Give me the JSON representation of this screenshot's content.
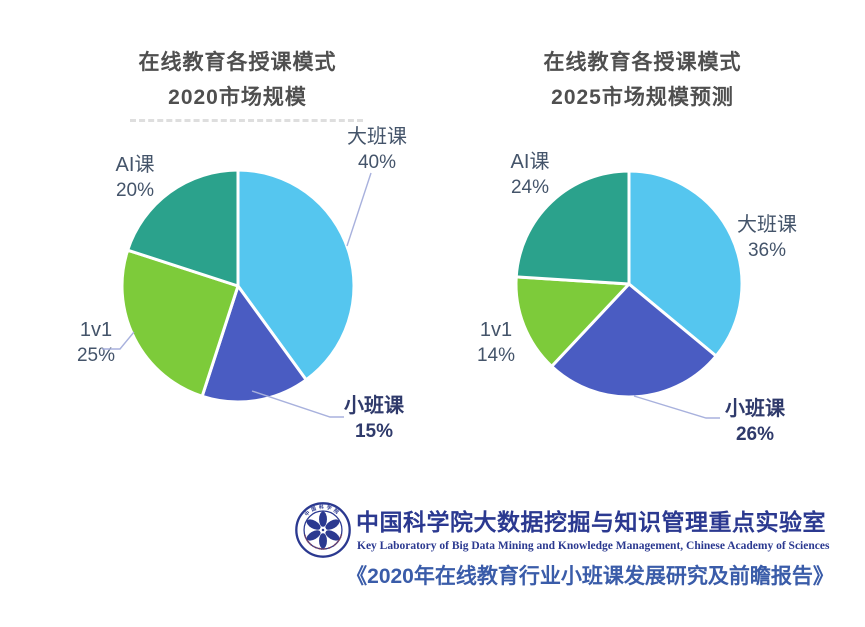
{
  "palette": {
    "skyblue": "#55C6EF",
    "indigo": "#4A5CC2",
    "lime": "#7DCB3A",
    "teal": "#2BA28C"
  },
  "style_colors": {
    "title_gray": "#4f4f4f",
    "label_blue_gray": "#44546A",
    "label_bold_navy": "#2F3A6B",
    "leader_line": "#A8B1DD",
    "logo_blue": "#2B3990",
    "report_title_blue": "#3A5CA9"
  },
  "chart_data": [
    {
      "type": "pie",
      "title_lines": [
        "在线教育各授课模式",
        "2020市场规模"
      ],
      "title": "在线教育各授课模式 2020市场规模",
      "unit": "%",
      "start_angle": "12-o-clock",
      "direction": "clockwise",
      "legend": "none",
      "labels_position": "outside",
      "slices": [
        {
          "label": "大班课",
          "value": 40,
          "pct": "40%",
          "color_key": "skyblue"
        },
        {
          "label": "小班课",
          "value": 15,
          "pct": "15%",
          "color_key": "indigo"
        },
        {
          "label": "1v1",
          "value": 25,
          "pct": "25%",
          "color_key": "lime"
        },
        {
          "label": "AI课",
          "value": 20,
          "pct": "20%",
          "color_key": "teal"
        }
      ]
    },
    {
      "type": "pie",
      "title_lines": [
        "在线教育各授课模式",
        "2025市场规模预测"
      ],
      "title": "在线教育各授课模式 2025市场规模预测",
      "unit": "%",
      "start_angle": "12-o-clock",
      "direction": "clockwise",
      "legend": "none",
      "labels_position": "outside",
      "slices": [
        {
          "label": "大班课",
          "value": 36,
          "pct": "36%",
          "color_key": "skyblue"
        },
        {
          "label": "小班课",
          "value": 26,
          "pct": "26%",
          "color_key": "indigo"
        },
        {
          "label": "1v1",
          "value": 14,
          "pct": "14%",
          "color_key": "lime"
        },
        {
          "label": "AI课",
          "value": 24,
          "pct": "24%",
          "color_key": "teal"
        }
      ]
    }
  ],
  "footer": {
    "lab_name_cn": "中国科学院大数据挖掘与知识管理重点实验室",
    "lab_name_en": "Key Laboratory of Big Data Mining and Knowledge Management, Chinese Academy of Sciences",
    "report_title": "《2020年在线教育行业小班课发展研究及前瞻报告》",
    "emblem": {
      "name": "chinese-academy-of-sciences-emblem",
      "ring_text_top": "中国科学院",
      "ring_text_bottom": "CHINESE ACADEMY OF SCIENCES"
    }
  }
}
